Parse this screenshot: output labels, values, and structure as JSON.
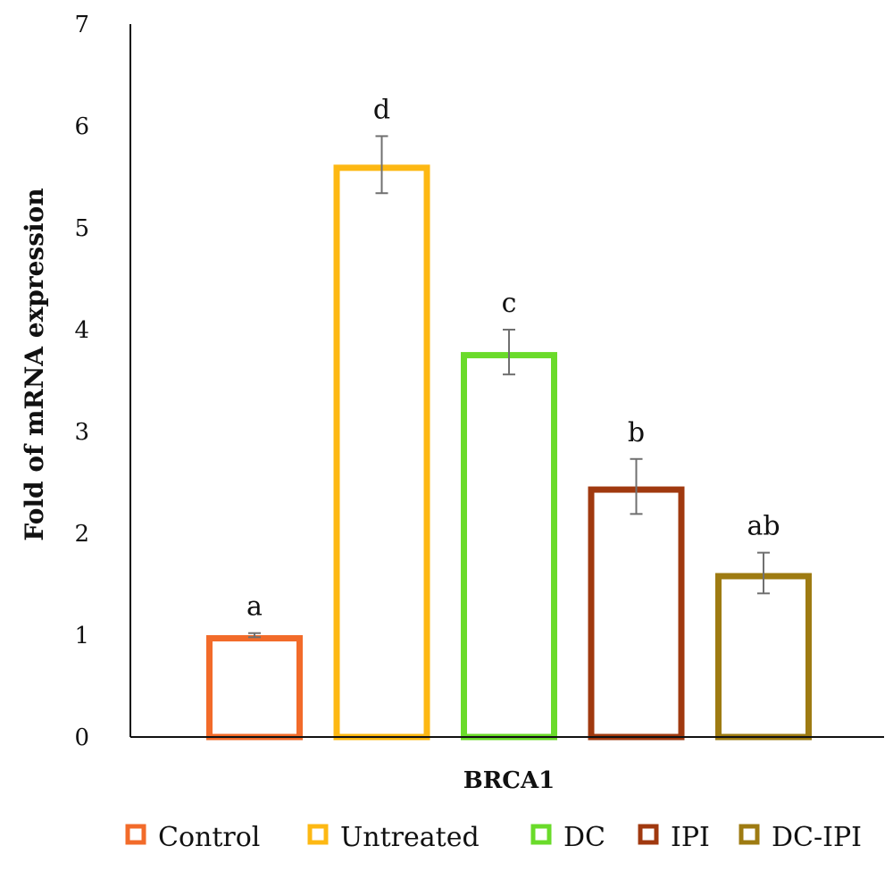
{
  "chart_data": {
    "type": "bar",
    "categories": [
      "Control",
      "Untreated",
      "DC",
      "IPI",
      "DC-IPI"
    ],
    "values": [
      1.0,
      5.62,
      3.78,
      2.46,
      1.61
    ],
    "errors": [
      0.02,
      0.28,
      0.22,
      0.27,
      0.2
    ],
    "significance_labels": [
      "a",
      "d",
      "c",
      "b",
      "ab"
    ],
    "colors": [
      "#F26B2A",
      "#FDB813",
      "#6ADB2A",
      "#A0390F",
      "#9E7B12"
    ],
    "error_bar_color": "#707070",
    "xlabel": "BRCA1",
    "ylabel": "Fold of mRNA expression",
    "ylim": [
      0,
      7
    ],
    "yticks": [
      0,
      1,
      2,
      3,
      4,
      5,
      6,
      7
    ],
    "grid": false,
    "bar_fill": "none",
    "legend": {
      "position": "bottom",
      "entries": [
        "Control",
        "Untreated",
        "DC",
        "IPI",
        "DC-IPI"
      ]
    }
  }
}
